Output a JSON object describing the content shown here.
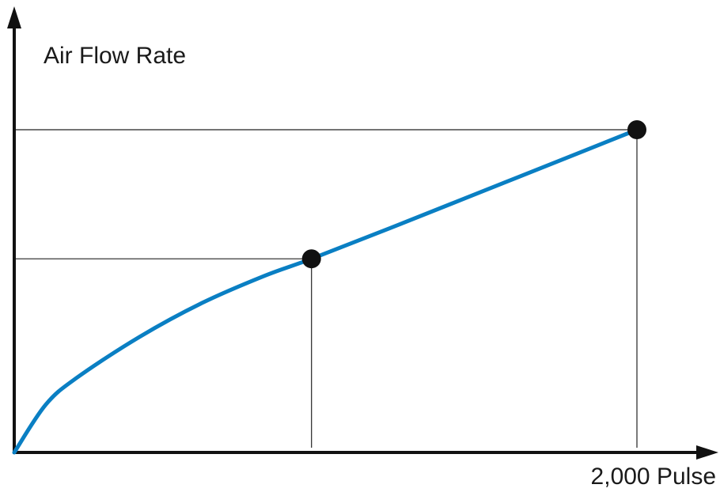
{
  "chart_data": {
    "type": "line",
    "ylabel": "Air Flow Rate",
    "xlabel": "2,000 Pulse",
    "x_range": [
      0,
      2000
    ],
    "y_range": [
      0,
      1
    ],
    "grid": false,
    "legend": "none",
    "series": [
      {
        "color": "#0A7FC3",
        "points": [
          [
            0,
            0.0
          ],
          [
            100,
            0.14
          ],
          [
            200,
            0.22
          ],
          [
            400,
            0.34
          ],
          [
            600,
            0.44
          ],
          [
            800,
            0.52
          ],
          [
            950,
            0.57
          ],
          [
            1200,
            0.66
          ],
          [
            1500,
            0.77
          ],
          [
            1800,
            0.88
          ],
          [
            1990,
            0.95
          ]
        ]
      }
    ],
    "markers": [
      {
        "x": 950,
        "y": 0.57
      },
      {
        "x": 1990,
        "y": 0.95
      }
    ],
    "colors": {
      "axis": "#111111",
      "guide": "#222222",
      "curve": "#0A7FC3",
      "marker": "#111111"
    }
  }
}
